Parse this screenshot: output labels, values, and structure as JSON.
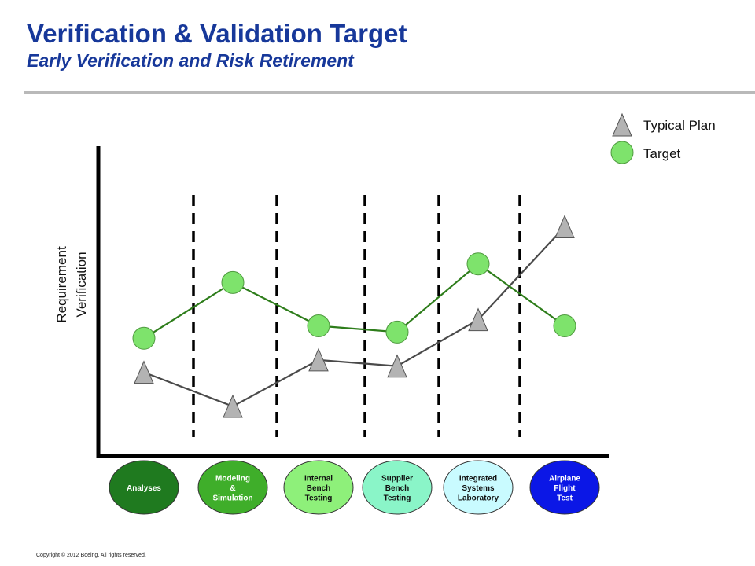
{
  "title": "Verification & Validation Target",
  "subtitle": "Early Verification and Risk Retirement",
  "copyright": "Copyright © 2012 Boeing. All rights reserved.",
  "colors": {
    "title": "#17389a",
    "target_marker": "#7ee36c",
    "target_line": "#2e7d1b",
    "plan_marker": "#b3b3b3",
    "plan_line": "#4a4a4a"
  },
  "chart_data": {
    "type": "line",
    "ylabel": [
      "Requirement",
      "Verification"
    ],
    "categories": [
      {
        "lines": [
          "Analyses"
        ],
        "fill": "#1f7a1f",
        "text_color": "#ffffff"
      },
      {
        "lines": [
          "Modeling",
          "&",
          "Simulation"
        ],
        "fill": "#3fae2a",
        "text_color": "#ffffff"
      },
      {
        "lines": [
          "Internal",
          "Bench",
          "Testing"
        ],
        "fill": "#8ef07a",
        "text_color": "#111111"
      },
      {
        "lines": [
          "Supplier",
          "Bench",
          "Testing"
        ],
        "fill": "#8af5c8",
        "text_color": "#111111"
      },
      {
        "lines": [
          "Integrated",
          "Systems",
          "Laboratory"
        ],
        "fill": "#c9fbff",
        "text_color": "#111111"
      },
      {
        "lines": [
          "Airplane",
          "Flight",
          "Test"
        ],
        "fill": "#0b17e6",
        "text_color": "#ffffff"
      }
    ],
    "series": [
      {
        "name": "Typical Plan",
        "marker": "triangle",
        "values": [
          27,
          16,
          31,
          29,
          44,
          74
        ]
      },
      {
        "name": "Target",
        "marker": "circle",
        "values": [
          38,
          56,
          42,
          40,
          62,
          42
        ]
      }
    ],
    "ylim": [
      0,
      100
    ],
    "grid": false,
    "dividers": true,
    "legend_position": "top-right"
  }
}
